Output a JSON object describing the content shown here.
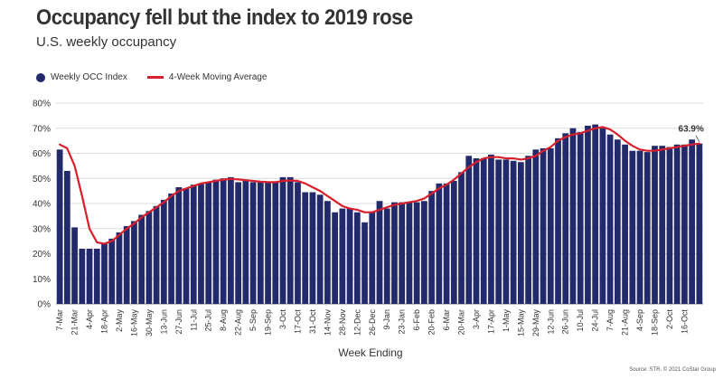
{
  "title": "Occupancy fell but the index to 2019 rose",
  "subtitle": "U.S. weekly occupancy",
  "legend": {
    "bars_label": "Weekly OCC Index",
    "line_label": "4-Week Moving Average"
  },
  "source": "Source: STR. © 2021 CoStar Group",
  "colors": {
    "bar": "#232a6b",
    "line": "#d7202b",
    "grid": "#d0d0d0",
    "text": "#333333"
  },
  "chart_data": {
    "type": "bar",
    "title": "Occupancy fell but the index to 2019 rose",
    "subtitle": "U.S. weekly occupancy",
    "xlabel": "Week Ending",
    "ylabel": "",
    "ylim": [
      0,
      80
    ],
    "yticks": [
      "0%",
      "10%",
      "20%",
      "30%",
      "40%",
      "50%",
      "60%",
      "70%",
      "80%"
    ],
    "grid": "horizontal",
    "legend_position": "top-left",
    "tick_labels": [
      "7-Mar",
      "21-Mar",
      "4-Apr",
      "18-Apr",
      "2-May",
      "16-May",
      "30-May",
      "13-Jun",
      "27-Jun",
      "11-Jul",
      "25-Jul",
      "8-Aug",
      "22-Aug",
      "5-Sep",
      "19-Sep",
      "3-Oct",
      "17-Oct",
      "31-Oct",
      "14-Nov",
      "28-Nov",
      "12-Dec",
      "26-Dec",
      "9-Jan",
      "23-Jan",
      "6-Feb",
      "20-Feb",
      "6-Mar",
      "20-Mar",
      "3-Apr",
      "17-Apr",
      "1-May",
      "15-May",
      "29-May",
      "12-Jun",
      "26-Jun",
      "10-Jul",
      "24-Jul",
      "7-Aug",
      "21-Aug",
      "4-Sep",
      "18-Sep",
      "2-Oct",
      "16-Oct"
    ],
    "data_label": "63.9%",
    "series": [
      {
        "name": "Weekly OCC Index",
        "type": "bar",
        "values": [
          61.5,
          53,
          30.5,
          22,
          22,
          22,
          24,
          26,
          28.5,
          31,
          33,
          35.5,
          37,
          39,
          41.5,
          44,
          46.5,
          46,
          47.5,
          48,
          48.5,
          49.5,
          50,
          50.5,
          48.5,
          49,
          48.5,
          48.5,
          48.5,
          48.5,
          50.5,
          50.5,
          48.5,
          44.5,
          44.5,
          43.5,
          41,
          36.5,
          38,
          38,
          36.5,
          32.5,
          36.5,
          41,
          38,
          40.5,
          40.5,
          40.5,
          40.5,
          41,
          45,
          48,
          48,
          49,
          52.5,
          59,
          58,
          58,
          59.5,
          57.5,
          57.5,
          57,
          56.5,
          59,
          61.5,
          62,
          62,
          66,
          68,
          70,
          68.5,
          71,
          71.5,
          70,
          67.5,
          65.5,
          63.5,
          61,
          61,
          60.5,
          63,
          63,
          62.5,
          63.5,
          63.5,
          65.5,
          63.9
        ]
      },
      {
        "name": "4-Week Moving Average",
        "type": "line",
        "values": [
          63.5,
          62,
          55,
          43,
          30,
          24.5,
          24,
          25,
          27.5,
          30,
          32,
          34.5,
          36.5,
          38.5,
          40.5,
          43,
          45,
          46,
          47,
          48,
          48.5,
          49,
          49.5,
          49.8,
          49.6,
          49.3,
          49,
          48.7,
          48.5,
          48.5,
          49,
          49.2,
          49,
          48,
          46.5,
          45,
          43,
          41,
          39,
          38,
          37.5,
          36.5,
          36.5,
          37.5,
          38.5,
          39.5,
          40,
          40.5,
          41,
          42,
          44,
          46,
          47.5,
          49.5,
          52,
          54.5,
          56.5,
          58,
          58.5,
          58.5,
          58,
          58,
          57.5,
          58,
          59,
          61,
          62.5,
          65,
          66.5,
          67.5,
          68,
          69,
          70,
          70.5,
          69.5,
          67.5,
          65,
          63,
          61.5,
          61,
          61,
          61.5,
          62,
          62.5,
          63,
          63.5,
          63.9
        ]
      }
    ]
  }
}
